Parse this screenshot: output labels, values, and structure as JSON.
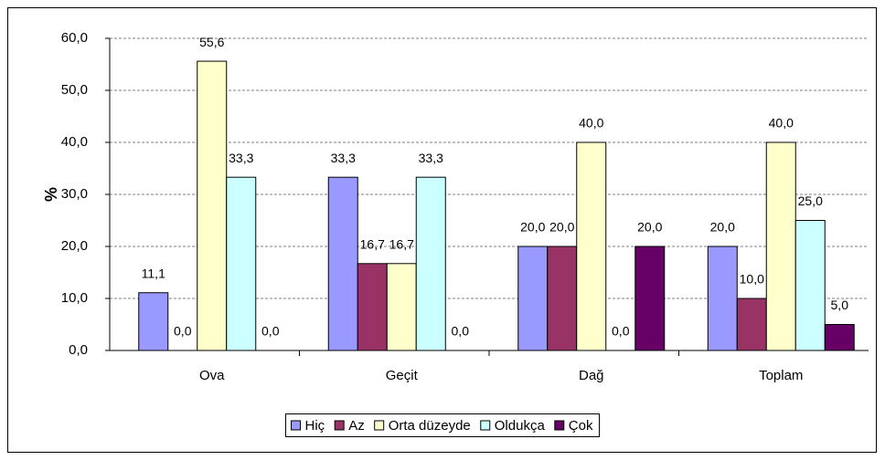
{
  "chart_data": {
    "type": "bar",
    "y_label": "%",
    "categories": [
      "Ova",
      "Geçit",
      "Dağ",
      "Toplam"
    ],
    "series": [
      {
        "name": "Hiç",
        "color": "#9999ff",
        "values": [
          11.1,
          33.3,
          20.0,
          20.0
        ],
        "value_labels": [
          "11,1",
          "33,3",
          "20,0",
          "20,0"
        ]
      },
      {
        "name": "Az",
        "color": "#993366",
        "values": [
          0.0,
          16.7,
          20.0,
          10.0
        ],
        "value_labels": [
          "0,0",
          "16,7",
          "20,0",
          "10,0"
        ]
      },
      {
        "name": "Orta düzeyde",
        "color": "#ffffcc",
        "values": [
          55.6,
          16.7,
          40.0,
          40.0
        ],
        "value_labels": [
          "55,6",
          "16,7",
          "40,0",
          "40,0"
        ]
      },
      {
        "name": "Oldukça",
        "color": "#ccffff",
        "values": [
          33.3,
          33.3,
          0.0,
          25.0
        ],
        "value_labels": [
          "33,3",
          "33,3",
          "0,0",
          "25,0"
        ]
      },
      {
        "name": "Çok",
        "color": "#660066",
        "values": [
          0.0,
          0.0,
          20.0,
          5.0
        ],
        "value_labels": [
          "0,0",
          "0,0",
          "20,0",
          "5,0"
        ]
      }
    ],
    "ylim": [
      0,
      60
    ],
    "yticks": [
      {
        "value": 0,
        "label": "0,0"
      },
      {
        "value": 10,
        "label": "10,0"
      },
      {
        "value": 20,
        "label": "20,0"
      },
      {
        "value": 30,
        "label": "30,0"
      },
      {
        "value": 40,
        "label": "40,0"
      },
      {
        "value": 50,
        "label": "50,0"
      },
      {
        "value": 60,
        "label": "60,0"
      }
    ],
    "grid": true,
    "legend": "bottom"
  }
}
